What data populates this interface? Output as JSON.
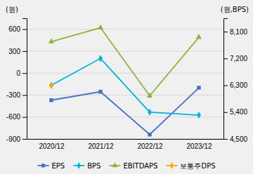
{
  "chart_data": {
    "type": "line",
    "ylabel": "(원)",
    "y2label": "(원,BPS)",
    "categories": [
      "2020/12",
      "2021/12",
      "2022/12",
      "2023/12"
    ],
    "series": [
      {
        "name": "EPS",
        "color": "#4472c4",
        "marker": "square",
        "values": [
          -370,
          -255,
          -840,
          -200
        ]
      },
      {
        "name": "BPS",
        "color": "#00b4d8",
        "marker": "diamond",
        "axis": "y2",
        "values": [
          6300,
          7200,
          5400,
          5300
        ]
      },
      {
        "name": "EBITDAPS",
        "color": "#8db53c",
        "marker": "triangle",
        "values": [
          430,
          620,
          -310,
          490
        ]
      },
      {
        "name": "보통주DPS",
        "color": "#ffa500",
        "marker": "diamond",
        "axis": "y2",
        "values": [
          6300,
          null,
          null,
          null
        ]
      }
    ],
    "ylim": [
      -900,
      750
    ],
    "yticks": [
      -900,
      -600,
      -300,
      0,
      300,
      600
    ],
    "y2lim": [
      4500,
      8550
    ],
    "y2ticks": [
      {
        "value": 4500,
        "label": "4,500"
      },
      {
        "value": 5400,
        "label": "5,400"
      },
      {
        "value": 6300,
        "label": "6,300"
      },
      {
        "value": 7200,
        "label": "7,200"
      },
      {
        "value": 8100,
        "label": "8,100"
      }
    ],
    "grid": true,
    "legend": "bottom"
  }
}
